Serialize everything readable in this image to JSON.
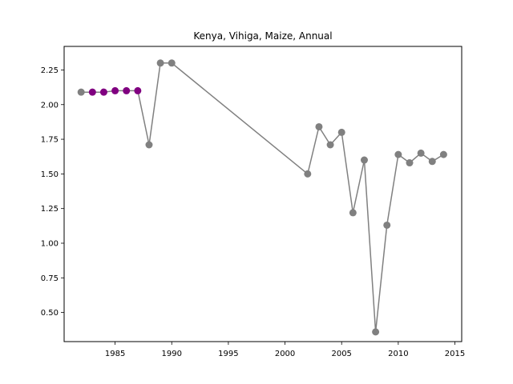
{
  "chart_data": {
    "type": "line",
    "title": "Kenya, Vihiga, Maize, Annual",
    "xlabel": "",
    "ylabel": "",
    "xlim": [
      1980.5,
      2015.6
    ],
    "ylim": [
      0.29,
      2.42
    ],
    "xticks": [
      1985,
      1990,
      1995,
      2000,
      2005,
      2010,
      2015
    ],
    "yticks": [
      0.5,
      0.75,
      1.0,
      1.25,
      1.5,
      1.75,
      2.0,
      2.25
    ],
    "ytick_labels": [
      "0.50",
      "0.75",
      "1.00",
      "1.25",
      "1.50",
      "1.75",
      "2.00",
      "2.25"
    ],
    "grid": false,
    "line_color": "#808080",
    "series": [
      {
        "x": [
          1982,
          1983,
          1984,
          1985,
          1986,
          1987,
          1988,
          1989,
          1990,
          2002,
          2003,
          2004,
          2005,
          2006,
          2007,
          2008,
          2009,
          2010,
          2011,
          2012,
          2013,
          2014
        ],
        "y": [
          2.09,
          2.09,
          2.09,
          2.1,
          2.1,
          2.1,
          1.71,
          2.3,
          2.3,
          1.5,
          1.84,
          1.71,
          1.8,
          1.22,
          1.6,
          0.36,
          1.13,
          1.64,
          1.58,
          1.65,
          1.59,
          1.64
        ],
        "marker_colors": [
          "#808080",
          "#800080",
          "#800080",
          "#800080",
          "#800080",
          "#800080",
          "#808080",
          "#808080",
          "#808080",
          "#808080",
          "#808080",
          "#808080",
          "#808080",
          "#808080",
          "#808080",
          "#808080",
          "#808080",
          "#808080",
          "#808080",
          "#808080",
          "#808080",
          "#808080"
        ]
      }
    ]
  }
}
